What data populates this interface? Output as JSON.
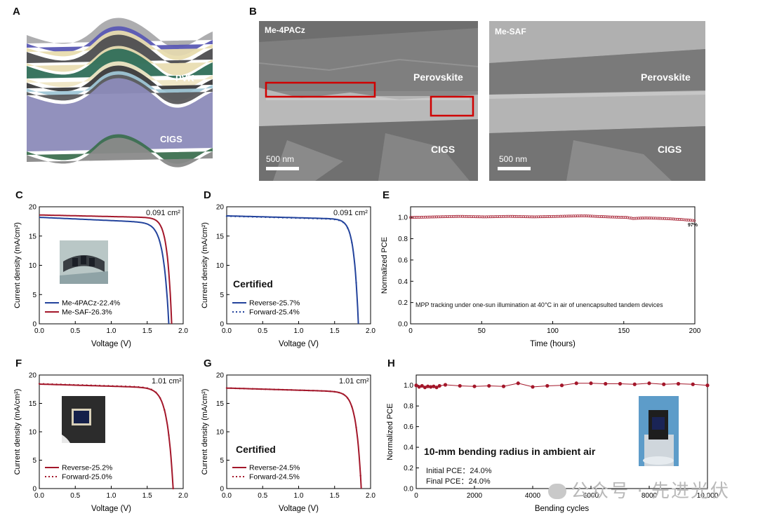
{
  "panels": {
    "A": {
      "letter": "A",
      "layers": [
        "PVK",
        "CIGS"
      ]
    },
    "B": {
      "letter": "B",
      "left": {
        "title": "Me-4PACz",
        "top": "Perovskite",
        "bottom": "CIGS",
        "scale": "500 nm"
      },
      "right": {
        "title": "Me-SAF",
        "top": "Perovskite",
        "bottom": "CIGS",
        "scale": "500 nm"
      }
    },
    "C": {
      "letter": "C",
      "area": "0.091 cm²"
    },
    "D": {
      "letter": "D",
      "area": "0.091 cm²",
      "tag": "Certified"
    },
    "E": {
      "letter": "E",
      "note": "MPP tracking under one-sun illumination at 40°C in air of unencapsulted tandem devices",
      "end_label": "97%"
    },
    "F": {
      "letter": "F",
      "area": "1.01 cm²"
    },
    "G": {
      "letter": "G",
      "area": "1.01 cm²",
      "tag": "Certified"
    },
    "H": {
      "letter": "H",
      "title": "10-mm bending radius in ambient air",
      "initial": "Initial PCE：24.0%",
      "final": "Final PCE：24.0%"
    }
  },
  "watermark": "公众号 · 先进光伏",
  "colors": {
    "red": "#a3172a",
    "blue": "#23439c"
  },
  "chart_data": [
    {
      "id": "C",
      "type": "line",
      "xlabel": "Voltage (V)",
      "ylabel": "Current density (mA/cm²)",
      "xlim": [
        0,
        2.0
      ],
      "ylim": [
        0,
        20
      ],
      "xticks": [
        "0.0",
        "0.5",
        "1.0",
        "1.5",
        "2.0"
      ],
      "yticks": [
        "0",
        "5",
        "10",
        "15",
        "20"
      ],
      "series": [
        {
          "name": "Me-4PACz-22.4%",
          "color": "#23439c",
          "style": "solid",
          "jsc": 18.2,
          "voc": 1.8,
          "vk": 1.48,
          "sharp": 0.075,
          "drop": 1.0
        },
        {
          "name": "Me-SAF-26.3%",
          "color": "#a3172a",
          "style": "solid",
          "jsc": 18.6,
          "voc": 1.84,
          "vk": 1.62,
          "sharp": 0.06,
          "drop": 0.5
        }
      ]
    },
    {
      "id": "D",
      "type": "line",
      "xlabel": "Voltage (V)",
      "ylabel": "Current density (mA/cm²)",
      "xlim": [
        0,
        2.0
      ],
      "ylim": [
        0,
        20
      ],
      "xticks": [
        "0.0",
        "0.5",
        "1.0",
        "1.5",
        "2.0"
      ],
      "yticks": [
        "0",
        "5",
        "10",
        "15",
        "20"
      ],
      "series": [
        {
          "name": "Reverse-25.7%",
          "color": "#23439c",
          "style": "solid",
          "jsc": 18.45,
          "voc": 1.83,
          "vk": 1.56,
          "sharp": 0.06,
          "drop": 0.6
        },
        {
          "name": "Forward-25.4%",
          "color": "#23439c",
          "style": "dot",
          "jsc": 18.4,
          "voc": 1.83,
          "vk": 1.55,
          "sharp": 0.06,
          "drop": 0.6
        }
      ]
    },
    {
      "id": "E",
      "type": "scatter",
      "xlabel": "Time (hours)",
      "ylabel": "Normalized PCE",
      "xlim": [
        0,
        230
      ],
      "ylim": [
        0,
        1.1
      ],
      "xticks": [
        "0",
        "50",
        "100",
        "150",
        "200"
      ],
      "yticks": [
        "0.0",
        "0.2",
        "0.4",
        "0.6",
        "0.8",
        "1.0"
      ],
      "series": [
        {
          "name": "MPP",
          "color": "#a3172a",
          "points": [
            [
              0,
              1.0
            ],
            [
              20,
              1.005
            ],
            [
              40,
              1.01
            ],
            [
              60,
              1.005
            ],
            [
              80,
              1.01
            ],
            [
              100,
              1.005
            ],
            [
              120,
              1.01
            ],
            [
              140,
              1.015
            ],
            [
              160,
              1.005
            ],
            [
              175,
              1.0
            ],
            [
              180,
              0.99
            ],
            [
              190,
              0.995
            ],
            [
              205,
              0.99
            ],
            [
              220,
              0.98
            ],
            [
              230,
              0.97
            ]
          ]
        }
      ]
    },
    {
      "id": "F",
      "type": "line",
      "xlabel": "Voltage (V)",
      "ylabel": "Current density (mA/cm²)",
      "xlim": [
        0,
        2.0
      ],
      "ylim": [
        0,
        20
      ],
      "xticks": [
        "0.0",
        "0.5",
        "1.0",
        "1.5",
        "2.0"
      ],
      "yticks": [
        "0",
        "5",
        "10",
        "15",
        "20"
      ],
      "series": [
        {
          "name": "Reverse-25.2%",
          "color": "#a3172a",
          "style": "solid",
          "jsc": 18.4,
          "voc": 1.86,
          "vk": 1.52,
          "sharp": 0.08,
          "drop": 0.7
        },
        {
          "name": "Forward-25.0%",
          "color": "#a3172a",
          "style": "dot",
          "jsc": 18.45,
          "voc": 1.86,
          "vk": 1.51,
          "sharp": 0.08,
          "drop": 0.7
        }
      ]
    },
    {
      "id": "G",
      "type": "line",
      "xlabel": "Voltage (V)",
      "ylabel": "Current density (mA/cm²)",
      "xlim": [
        0,
        2.0
      ],
      "ylim": [
        0,
        20
      ],
      "xticks": [
        "0.0",
        "0.5",
        "1.0",
        "1.5",
        "2.0"
      ],
      "yticks": [
        "0",
        "5",
        "10",
        "15",
        "20"
      ],
      "series": [
        {
          "name": "Reverse-24.5%",
          "color": "#a3172a",
          "style": "solid",
          "jsc": 17.7,
          "voc": 1.87,
          "vk": 1.56,
          "sharp": 0.07,
          "drop": 0.7
        },
        {
          "name": "Forward-24.5%",
          "color": "#a3172a",
          "style": "dot",
          "jsc": 17.7,
          "voc": 1.87,
          "vk": 1.56,
          "sharp": 0.07,
          "drop": 0.7
        }
      ]
    },
    {
      "id": "H",
      "type": "line",
      "xlabel": "Bending cycles",
      "ylabel": "Normalized PCE",
      "xlim": [
        0,
        10000
      ],
      "ylim": [
        0,
        1.1
      ],
      "xticks": [
        "0",
        "2000",
        "4000",
        "6000",
        "8000",
        "10,000"
      ],
      "yticks": [
        "0.0",
        "0.2",
        "0.4",
        "0.6",
        "0.8",
        "1.0"
      ],
      "series": [
        {
          "name": "Bending",
          "color": "#a3172a",
          "points": [
            [
              0,
              1.0
            ],
            [
              100,
              0.985
            ],
            [
              200,
              0.995
            ],
            [
              300,
              0.98
            ],
            [
              400,
              0.99
            ],
            [
              500,
              0.985
            ],
            [
              600,
              0.99
            ],
            [
              700,
              0.98
            ],
            [
              800,
              0.995
            ],
            [
              1000,
              1.005
            ],
            [
              1500,
              0.995
            ],
            [
              2000,
              0.99
            ],
            [
              2500,
              0.995
            ],
            [
              3000,
              0.99
            ],
            [
              3500,
              1.02
            ],
            [
              4000,
              0.985
            ],
            [
              4500,
              0.995
            ],
            [
              5000,
              1.0
            ],
            [
              5500,
              1.02
            ],
            [
              6000,
              1.02
            ],
            [
              6500,
              1.015
            ],
            [
              7000,
              1.015
            ],
            [
              7500,
              1.01
            ],
            [
              8000,
              1.02
            ],
            [
              8500,
              1.01
            ],
            [
              9000,
              1.015
            ],
            [
              9500,
              1.01
            ],
            [
              10000,
              1.0
            ]
          ]
        }
      ]
    }
  ]
}
